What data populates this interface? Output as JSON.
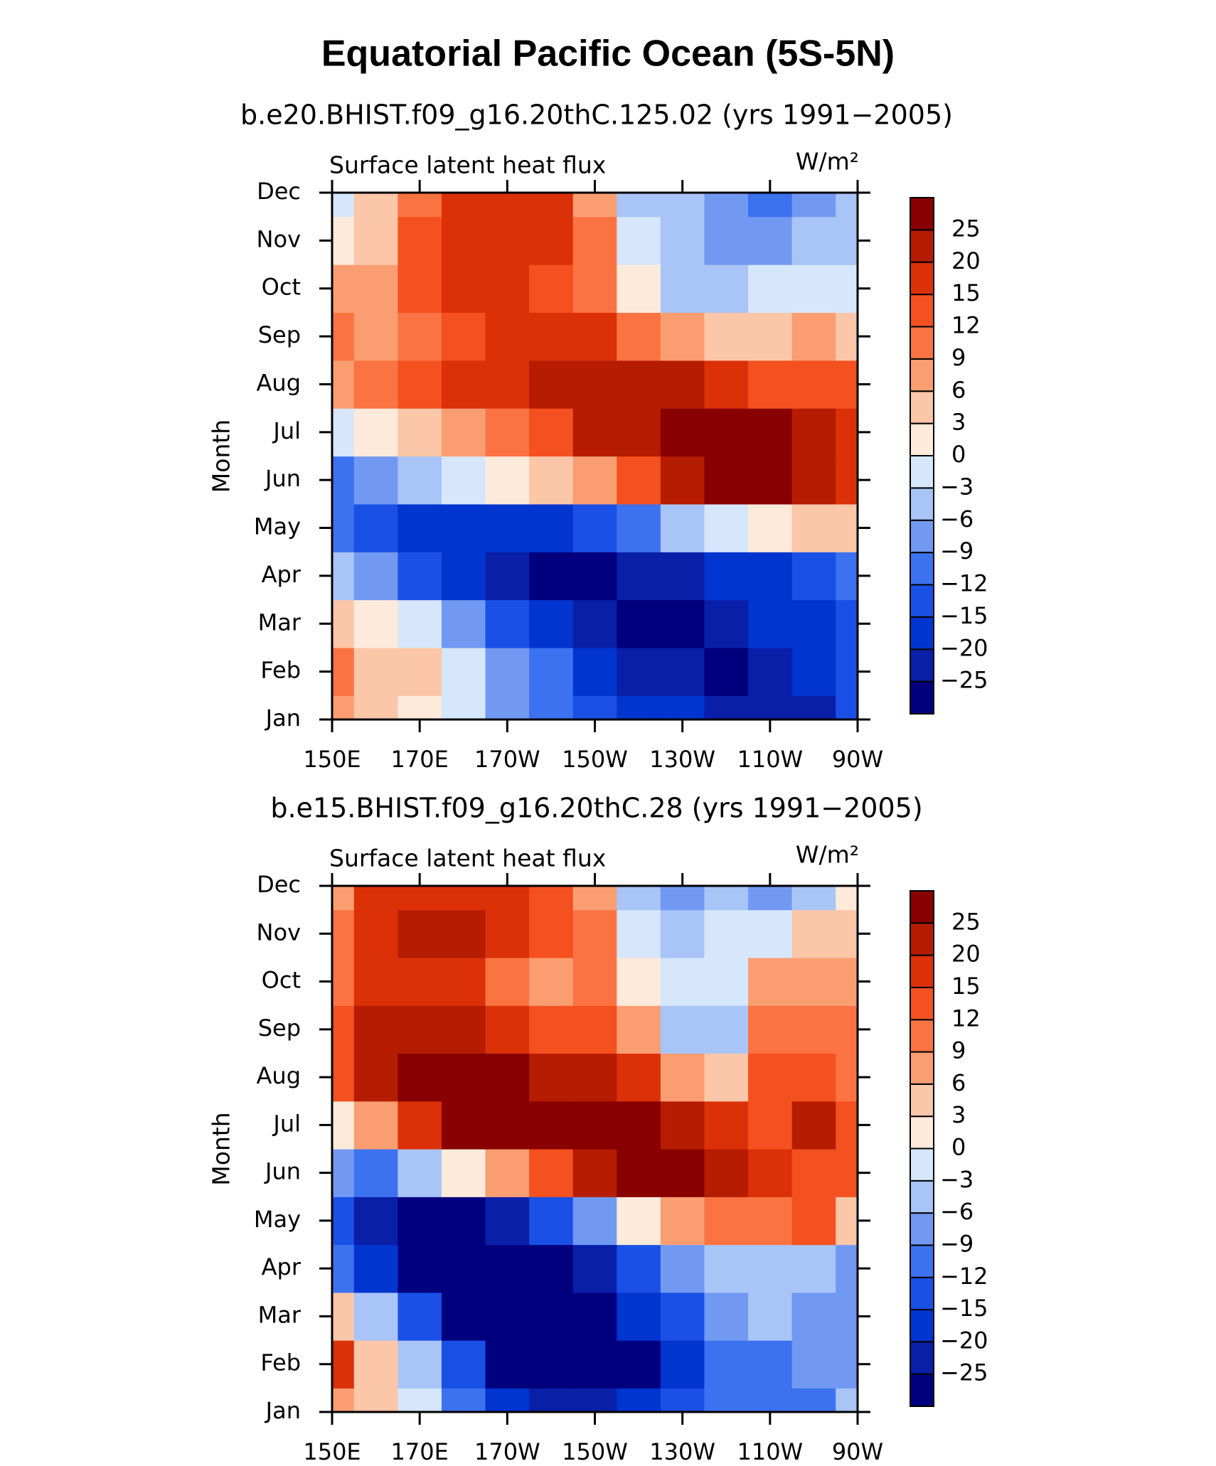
{
  "title": "Equatorial Pacific Ocean (5S-5N)",
  "chart_data": [
    {
      "type": "contour",
      "subtitle": "b.e20.BHIST.f09_g16.20thC.125.02 (yrs 1991−2005)",
      "left_label": "Surface latent heat flux",
      "units": "W/m²",
      "ylabel": "Month",
      "x": [
        150,
        160,
        170,
        180,
        190,
        200,
        210,
        220,
        230,
        240,
        250,
        260,
        270
      ],
      "xlim": [
        150,
        270
      ],
      "xticks": [
        {
          "value": 150,
          "label": "150E"
        },
        {
          "value": 170,
          "label": "170E"
        },
        {
          "value": 190,
          "label": "170W"
        },
        {
          "value": 210,
          "label": "150W"
        },
        {
          "value": 230,
          "label": "130W"
        },
        {
          "value": 250,
          "label": "110W"
        },
        {
          "value": 270,
          "label": "90W"
        }
      ],
      "categories": [
        "Jan",
        "Feb",
        "Mar",
        "Apr",
        "May",
        "Jun",
        "Jul",
        "Aug",
        "Sep",
        "Oct",
        "Nov",
        "Dec"
      ],
      "z": [
        [
          6,
          4,
          2,
          -3,
          -9,
          -12,
          -15,
          -20,
          -20,
          -22,
          -22,
          -25,
          -15
        ],
        [
          10,
          5,
          3,
          -2,
          -8,
          -12,
          -18,
          -22,
          -22,
          -26,
          -22,
          -20,
          -15
        ],
        [
          4,
          2,
          -3,
          -9,
          -15,
          -20,
          -25,
          -27,
          -27,
          -22,
          -20,
          -18,
          -15
        ],
        [
          -6,
          -9,
          -15,
          -20,
          -25,
          -27,
          -27,
          -25,
          -22,
          -20,
          -18,
          -15,
          -12
        ],
        [
          -12,
          -15,
          -20,
          -20,
          -20,
          -18,
          -15,
          -12,
          -6,
          -3,
          0,
          3,
          5
        ],
        [
          -10,
          -9,
          -6,
          -3,
          0,
          4,
          8,
          12,
          20,
          26,
          26,
          22,
          18
        ],
        [
          -3,
          0,
          3,
          6,
          10,
          14,
          20,
          24,
          28,
          28,
          28,
          22,
          18
        ],
        [
          7,
          9,
          12,
          15,
          16,
          20,
          22,
          22,
          20,
          18,
          14,
          14,
          12
        ],
        [
          10,
          7,
          10,
          12,
          15,
          16,
          15,
          10,
          6,
          3,
          5,
          6,
          3
        ],
        [
          6,
          7,
          12,
          15,
          15,
          14,
          9,
          0,
          -6,
          -6,
          -3,
          -3,
          -3
        ],
        [
          0,
          4,
          12,
          16,
          18,
          16,
          9,
          -3,
          -6,
          -9,
          -9,
          -6,
          -6
        ],
        [
          -2,
          3,
          10,
          15,
          16,
          15,
          7,
          -6,
          -6,
          -9,
          -12,
          -9,
          -6
        ]
      ],
      "levels": [
        {
          "value": -25,
          "label": "−25"
        },
        {
          "value": -20,
          "label": "−20"
        },
        {
          "value": -15,
          "label": "−15"
        },
        {
          "value": -12,
          "label": "−12"
        },
        {
          "value": -9,
          "label": "−9"
        },
        {
          "value": -6,
          "label": "−6"
        },
        {
          "value": -3,
          "label": "−3"
        },
        0,
        3,
        6,
        9,
        12,
        15,
        20,
        25
      ],
      "colors": [
        "#00007f",
        "#0a1fa8",
        "#0035d0",
        "#1a50e6",
        "#3c72f0",
        "#7299f2",
        "#a9c4f6",
        "#d6e6fb",
        "#fdeadb",
        "#fcc6a8",
        "#fa9e72",
        "#fb7342",
        "#f5501f",
        "#dc3008",
        "#b51c00",
        "#880000"
      ]
    },
    {
      "type": "contour",
      "subtitle": "b.e15.BHIST.f09_g16.20thC.28 (yrs 1991−2005)",
      "left_label": "Surface latent heat flux",
      "units": "W/m²",
      "ylabel": "Month",
      "x": [
        150,
        160,
        170,
        180,
        190,
        200,
        210,
        220,
        230,
        240,
        250,
        260,
        270
      ],
      "xlim": [
        150,
        270
      ],
      "xticks": [
        {
          "value": 150,
          "label": "150E"
        },
        {
          "value": 170,
          "label": "170E"
        },
        {
          "value": 190,
          "label": "170W"
        },
        {
          "value": 210,
          "label": "150W"
        },
        {
          "value": 230,
          "label": "130W"
        },
        {
          "value": 250,
          "label": "110W"
        },
        {
          "value": 270,
          "label": "90W"
        }
      ],
      "categories": [
        "Jan",
        "Feb",
        "Mar",
        "Apr",
        "May",
        "Jun",
        "Jul",
        "Aug",
        "Sep",
        "Oct",
        "Nov",
        "Dec"
      ],
      "z": [
        [
          6,
          3,
          -3,
          -12,
          -18,
          -22,
          -22,
          -20,
          -15,
          -12,
          -12,
          -12,
          -6
        ],
        [
          15,
          5,
          -6,
          -15,
          -26,
          -27,
          -27,
          -26,
          -18,
          -12,
          -12,
          -9,
          -9
        ],
        [
          3,
          -6,
          -15,
          -26,
          -27,
          -27,
          -27,
          -20,
          -15,
          -9,
          -6,
          -9,
          -9
        ],
        [
          -12,
          -20,
          -26,
          -27,
          -27,
          -26,
          -22,
          -15,
          -9,
          -6,
          -6,
          -6,
          -9
        ],
        [
          -15,
          -22,
          -26,
          -26,
          -22,
          -15,
          -9,
          0,
          6,
          9,
          9,
          12,
          3
        ],
        [
          -9,
          -12,
          -6,
          0,
          6,
          12,
          20,
          26,
          26,
          22,
          15,
          12,
          12
        ],
        [
          0,
          6,
          15,
          26,
          26,
          26,
          26,
          26,
          22,
          15,
          12,
          20,
          12
        ],
        [
          12,
          20,
          26,
          26,
          26,
          24,
          22,
          15,
          6,
          3,
          12,
          12,
          10
        ],
        [
          12,
          20,
          20,
          20,
          15,
          12,
          12,
          6,
          -6,
          -6,
          9,
          9,
          9
        ],
        [
          9,
          15,
          15,
          15,
          10,
          6,
          9,
          0,
          -3,
          -3,
          6,
          6,
          6
        ],
        [
          9,
          15,
          20,
          20,
          15,
          12,
          9,
          -3,
          -6,
          -3,
          -3,
          3,
          3
        ],
        [
          6,
          15,
          15,
          15,
          15,
          12,
          6,
          -6,
          -9,
          -6,
          -9,
          -6,
          0
        ]
      ],
      "levels": [
        {
          "value": -25,
          "label": "−25"
        },
        {
          "value": -20,
          "label": "−20"
        },
        {
          "value": -15,
          "label": "−15"
        },
        {
          "value": -12,
          "label": "−12"
        },
        {
          "value": -9,
          "label": "−9"
        },
        {
          "value": -6,
          "label": "−6"
        },
        {
          "value": -3,
          "label": "−3"
        },
        0,
        3,
        6,
        9,
        12,
        15,
        20,
        25
      ],
      "colors": [
        "#00007f",
        "#0a1fa8",
        "#0035d0",
        "#1a50e6",
        "#3c72f0",
        "#7299f2",
        "#a9c4f6",
        "#d6e6fb",
        "#fdeadb",
        "#fcc6a8",
        "#fa9e72",
        "#fb7342",
        "#f5501f",
        "#dc3008",
        "#b51c00",
        "#880000"
      ]
    }
  ]
}
